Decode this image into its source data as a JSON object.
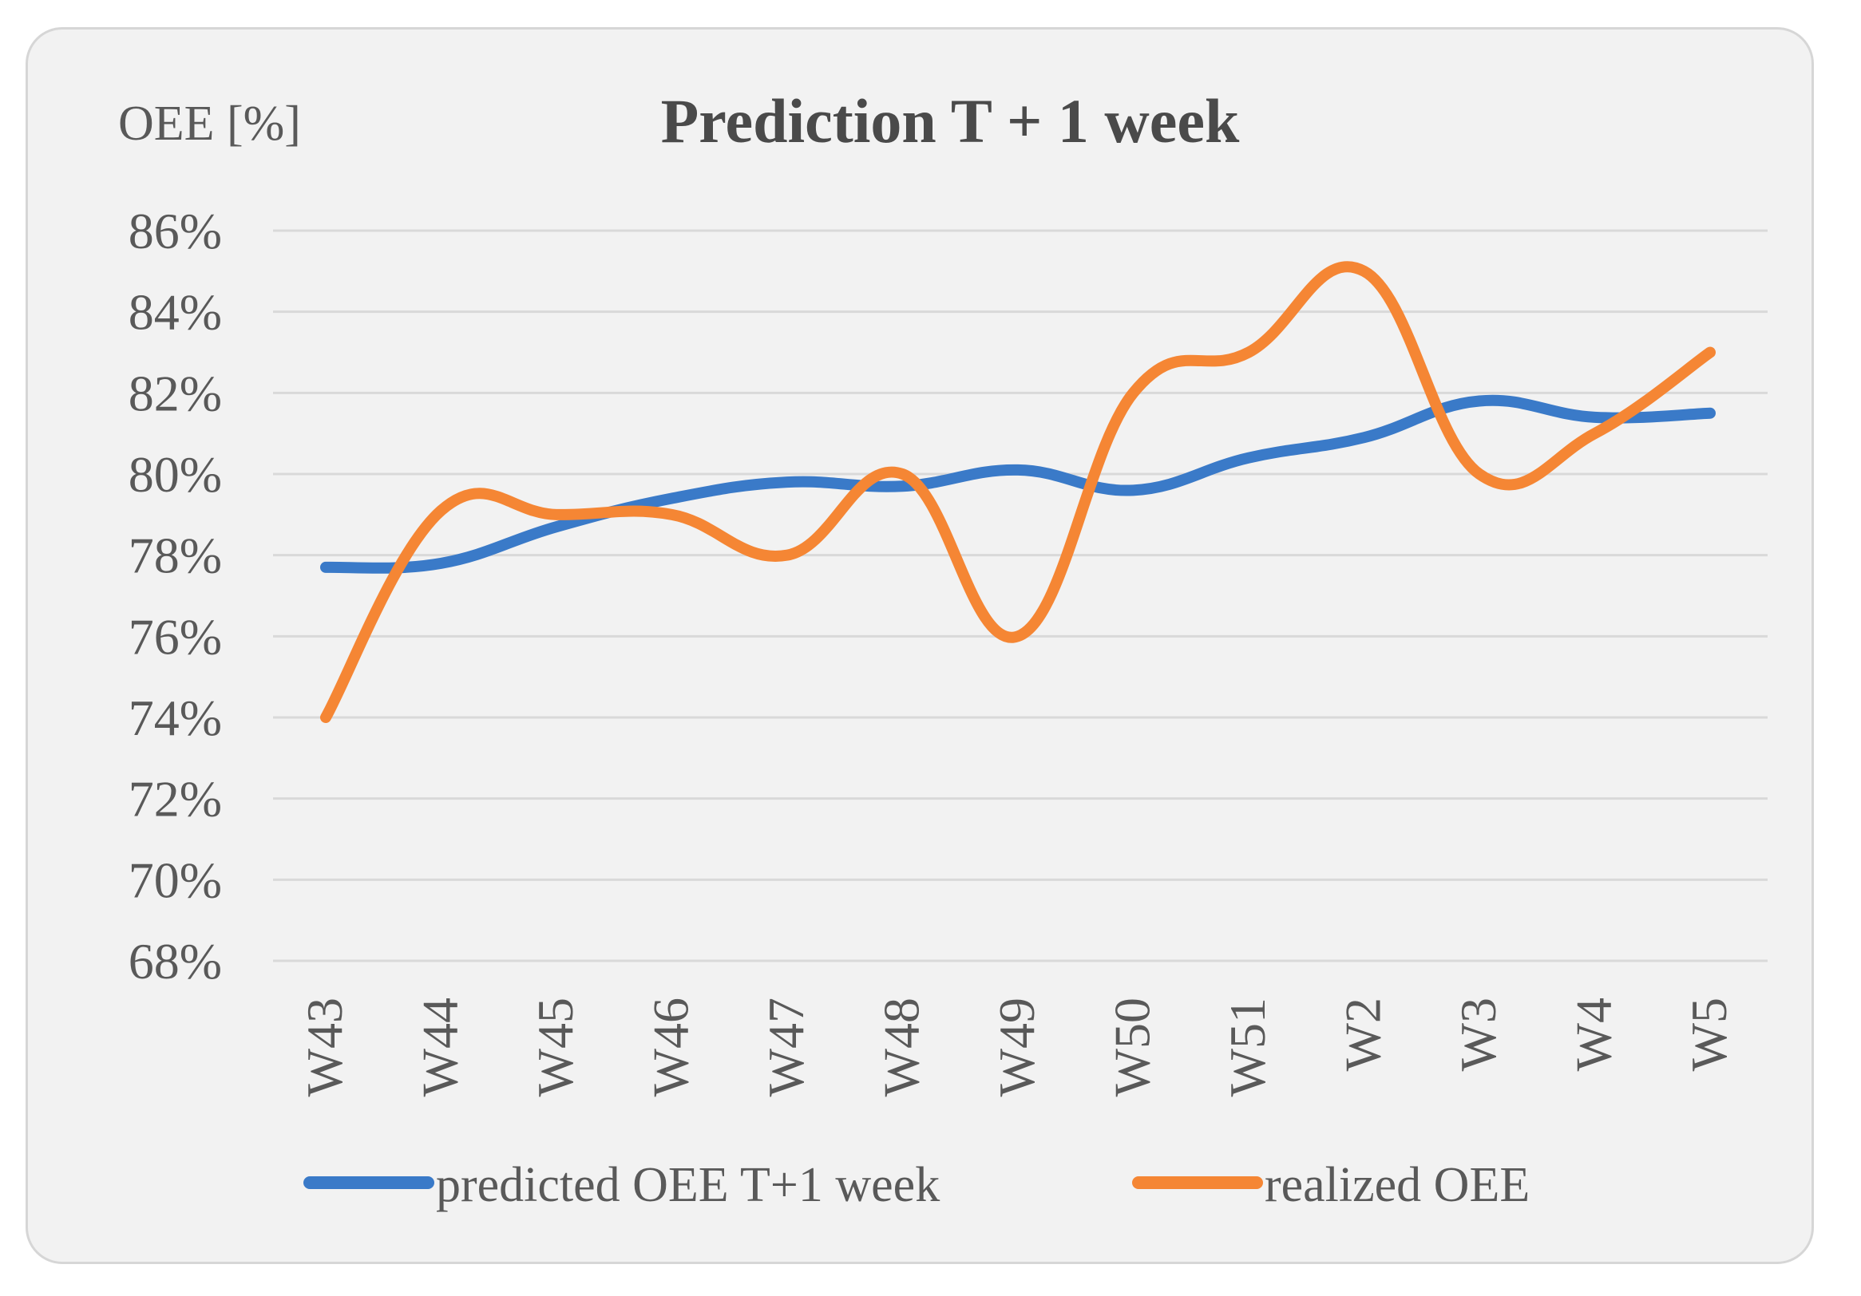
{
  "chart_data": {
    "type": "line",
    "title": "Prediction T + 1 week",
    "ylabel": "OEE [%]",
    "xlabel": "",
    "ylim": [
      68,
      86
    ],
    "yticks": [
      "86%",
      "84%",
      "82%",
      "80%",
      "78%",
      "76%",
      "74%",
      "72%",
      "70%",
      "68%"
    ],
    "ytick_values": [
      86,
      84,
      82,
      80,
      78,
      76,
      74,
      72,
      70,
      68
    ],
    "categories": [
      "W43",
      "W44",
      "W45",
      "W46",
      "W47",
      "W48",
      "W49",
      "W50",
      "W51",
      "W2",
      "W3",
      "W4",
      "W5"
    ],
    "series": [
      {
        "name": "predicted OEE T+1 week",
        "color": "#3a7ac8",
        "values": [
          77.7,
          77.8,
          78.7,
          79.4,
          79.8,
          79.7,
          80.1,
          79.6,
          80.4,
          80.9,
          81.8,
          81.4,
          81.5
        ]
      },
      {
        "name": "realized OEE",
        "color": "#f58634",
        "values": [
          74.0,
          79.1,
          79.0,
          79.0,
          78.0,
          80.0,
          76.0,
          82.0,
          83.0,
          85.0,
          80.0,
          81.0,
          83.0
        ]
      }
    ],
    "grid": true,
    "legend": "bottom"
  }
}
